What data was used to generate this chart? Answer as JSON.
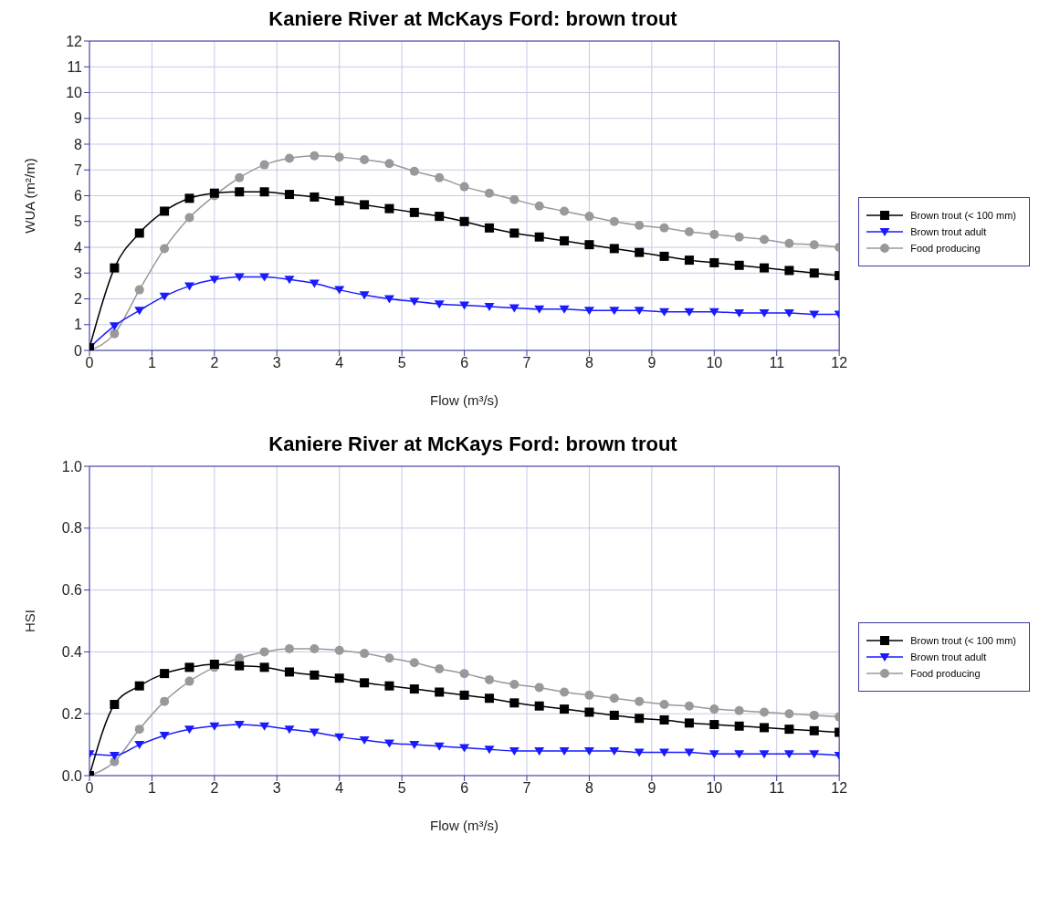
{
  "chart_data": [
    {
      "type": "line",
      "title": "Kaniere River at McKays Ford: brown trout",
      "xlabel": "Flow (m³/s)",
      "ylabel": "WUA (m²/m)",
      "x": [
        0,
        0.4,
        0.8,
        1.2,
        1.6,
        2,
        2.4,
        2.8,
        3.2,
        3.6,
        4,
        4.4,
        4.8,
        5.2,
        5.6,
        6,
        6.4,
        6.8,
        7.2,
        7.6,
        8,
        8.4,
        8.8,
        9.2,
        9.6,
        10,
        10.4,
        10.8,
        11.2,
        11.6,
        12
      ],
      "series": [
        {
          "name": "Brown trout (< 100 mm)",
          "color": "#000000",
          "marker": "square",
          "values": [
            0.1,
            3.2,
            4.55,
            5.4,
            5.9,
            6.1,
            6.15,
            6.15,
            6.05,
            5.95,
            5.8,
            5.65,
            5.5,
            5.35,
            5.2,
            5.0,
            4.75,
            4.55,
            4.4,
            4.25,
            4.1,
            3.95,
            3.8,
            3.65,
            3.5,
            3.4,
            3.3,
            3.2,
            3.1,
            3.0,
            2.9
          ]
        },
        {
          "name": "Brown trout adult",
          "color": "#1a1aff",
          "marker": "triangle",
          "values": [
            0.1,
            0.95,
            1.55,
            2.1,
            2.5,
            2.75,
            2.85,
            2.85,
            2.75,
            2.6,
            2.35,
            2.15,
            2.0,
            1.9,
            1.8,
            1.75,
            1.7,
            1.65,
            1.6,
            1.6,
            1.55,
            1.55,
            1.55,
            1.5,
            1.5,
            1.5,
            1.45,
            1.45,
            1.45,
            1.4,
            1.4
          ]
        },
        {
          "name": "Food producing",
          "color": "#999999",
          "marker": "circle",
          "values": [
            0.0,
            0.65,
            2.35,
            3.95,
            5.15,
            6.0,
            6.7,
            7.2,
            7.45,
            7.55,
            7.5,
            7.4,
            7.25,
            6.95,
            6.7,
            6.35,
            6.1,
            5.85,
            5.6,
            5.4,
            5.2,
            5.0,
            4.85,
            4.75,
            4.6,
            4.5,
            4.4,
            4.3,
            4.15,
            4.1,
            4.0
          ]
        }
      ],
      "xlim": [
        0,
        12
      ],
      "xticks": [
        0,
        1,
        2,
        3,
        4,
        5,
        6,
        7,
        8,
        9,
        10,
        11,
        12
      ],
      "ylim": [
        0,
        12
      ],
      "yticks": [
        0,
        1,
        2,
        3,
        4,
        5,
        6,
        7,
        8,
        9,
        10,
        11,
        12
      ],
      "grid": true,
      "legend": "right",
      "line_style": "solid"
    },
    {
      "type": "line",
      "title": "Kaniere River at McKays Ford: brown trout",
      "xlabel": "Flow (m³/s)",
      "ylabel": "HSI",
      "x": [
        0,
        0.4,
        0.8,
        1.2,
        1.6,
        2,
        2.4,
        2.8,
        3.2,
        3.6,
        4,
        4.4,
        4.8,
        5.2,
        5.6,
        6,
        6.4,
        6.8,
        7.2,
        7.6,
        8,
        8.4,
        8.8,
        9.2,
        9.6,
        10,
        10.4,
        10.8,
        11.2,
        11.6,
        12
      ],
      "series": [
        {
          "name": "Brown trout (< 100 mm)",
          "color": "#000000",
          "marker": "square",
          "values": [
            0,
            0.23,
            0.29,
            0.33,
            0.35,
            0.36,
            0.355,
            0.35,
            0.335,
            0.325,
            0.315,
            0.3,
            0.29,
            0.28,
            0.27,
            0.26,
            0.25,
            0.235,
            0.225,
            0.215,
            0.205,
            0.195,
            0.185,
            0.18,
            0.17,
            0.165,
            0.16,
            0.155,
            0.15,
            0.145,
            0.14
          ]
        },
        {
          "name": "Brown trout adult",
          "color": "#1a1aff",
          "marker": "triangle",
          "values": [
            0.07,
            0.065,
            0.1,
            0.13,
            0.15,
            0.16,
            0.165,
            0.16,
            0.15,
            0.14,
            0.125,
            0.115,
            0.105,
            0.1,
            0.095,
            0.09,
            0.085,
            0.08,
            0.08,
            0.08,
            0.08,
            0.08,
            0.075,
            0.075,
            0.075,
            0.07,
            0.07,
            0.07,
            0.07,
            0.07,
            0.065
          ]
        },
        {
          "name": "Food producing",
          "color": "#999999",
          "marker": "circle",
          "values": [
            0,
            0.045,
            0.15,
            0.24,
            0.305,
            0.35,
            0.38,
            0.4,
            0.41,
            0.41,
            0.405,
            0.395,
            0.38,
            0.365,
            0.345,
            0.33,
            0.31,
            0.295,
            0.285,
            0.27,
            0.26,
            0.25,
            0.24,
            0.23,
            0.225,
            0.215,
            0.21,
            0.205,
            0.2,
            0.195,
            0.19
          ]
        }
      ],
      "xlim": [
        0,
        12
      ],
      "xticks": [
        0,
        1,
        2,
        3,
        4,
        5,
        6,
        7,
        8,
        9,
        10,
        11,
        12
      ],
      "ylim": [
        0,
        1
      ],
      "yticks": [
        {
          "value": 0,
          "label": "0.0"
        },
        {
          "value": 0.2,
          "label": "0.2"
        },
        {
          "value": 0.4,
          "label": "0.4"
        },
        {
          "value": 0.6,
          "label": "0.6"
        },
        {
          "value": 0.8,
          "label": "0.8"
        },
        {
          "value": 1,
          "label": "1.0"
        }
      ],
      "grid": true,
      "legend": "right",
      "line_style": "solid"
    }
  ]
}
